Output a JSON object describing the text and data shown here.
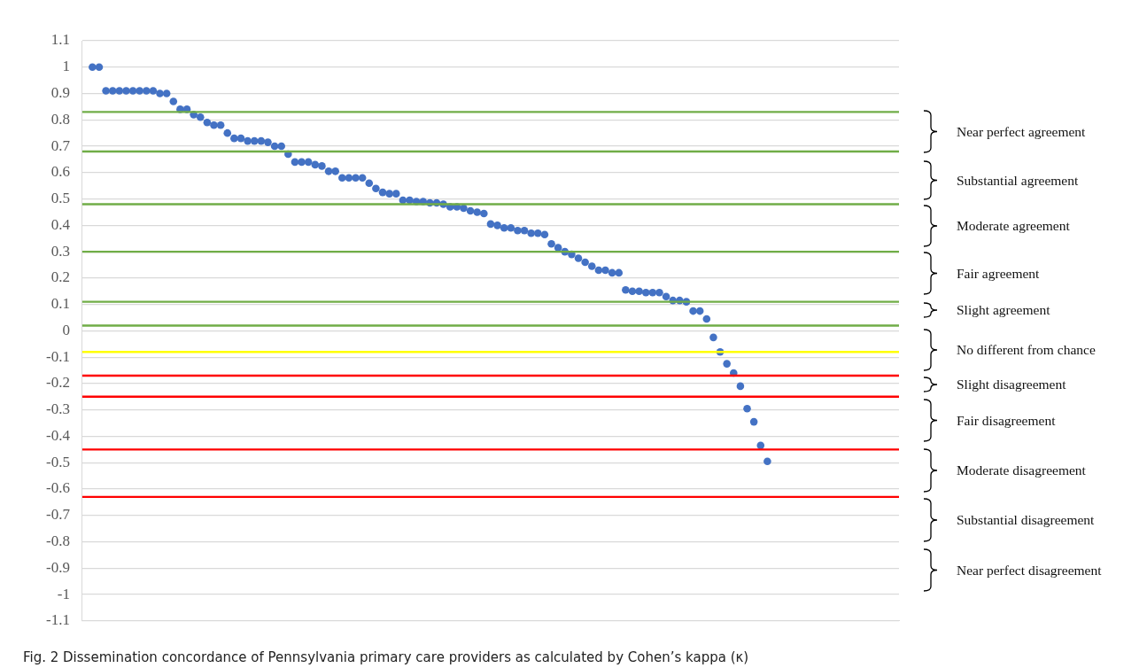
{
  "chart_data": {
    "type": "scatter",
    "categories": [
      null,
      null,
      null,
      null,
      null,
      null,
      null,
      null,
      null,
      null,
      null,
      null,
      null,
      null,
      null,
      null,
      null,
      null,
      null,
      null,
      null,
      null,
      null,
      null,
      null,
      null,
      null,
      null,
      null,
      null,
      null,
      null,
      null,
      null,
      null,
      null,
      null,
      null,
      null,
      null,
      null,
      null,
      null,
      null,
      null,
      null,
      null,
      null,
      null,
      null,
      null,
      null,
      null,
      null,
      null,
      null,
      null,
      null,
      null,
      null,
      null,
      null,
      null,
      null,
      null,
      null,
      null,
      null,
      null,
      null,
      null,
      null,
      null,
      null,
      null,
      null,
      null,
      null,
      null,
      null,
      null,
      null,
      null,
      null,
      null,
      null,
      null,
      null,
      null,
      null,
      null,
      null,
      null,
      null,
      null,
      null,
      null,
      null,
      null,
      null,
      null,
      null,
      null,
      null,
      null,
      null,
      null,
      null,
      null,
      null,
      null,
      null,
      null,
      null,
      null,
      null,
      null,
      null,
      null,
      null,
      null
    ],
    "series": [
      {
        "color": "#4472c4",
        "values": [
          null,
          1,
          1,
          0.91,
          0.91,
          0.91,
          0.91,
          0.91,
          0.91,
          0.91,
          0.91,
          0.9,
          0.9,
          0.87,
          0.84,
          0.84,
          0.82,
          0.81,
          0.79,
          0.78,
          0.78,
          0.75,
          0.73,
          0.73,
          0.72,
          0.72,
          0.72,
          0.715,
          0.7,
          0.7,
          0.67,
          0.64,
          0.64,
          0.64,
          0.63,
          0.625,
          0.605,
          0.605,
          0.58,
          0.58,
          0.58,
          0.58,
          0.56,
          0.54,
          0.525,
          0.52,
          0.52,
          0.495,
          0.495,
          0.49,
          0.49,
          0.485,
          0.485,
          0.48,
          0.47,
          0.47,
          0.465,
          0.455,
          0.45,
          0.445,
          0.405,
          0.4,
          0.39,
          0.39,
          0.38,
          0.38,
          0.37,
          0.37,
          0.365,
          0.33,
          0.315,
          0.3,
          0.29,
          0.275,
          0.26,
          0.245,
          0.23,
          0.23,
          0.22,
          0.22,
          0.155,
          0.15,
          0.15,
          0.145,
          0.145,
          0.145,
          0.13,
          0.115,
          0.115,
          0.11,
          0.075,
          0.075,
          0.045,
          -0.025,
          -0.08,
          -0.125,
          -0.16,
          -0.21,
          -0.295,
          -0.345,
          -0.435,
          -0.495,
          null,
          null,
          null,
          null,
          null,
          null,
          null,
          null,
          null,
          null,
          null,
          null,
          null,
          null,
          null,
          null,
          null,
          null,
          null
        ]
      }
    ],
    "marker": "circle",
    "ylim": [
      -1.1,
      1.1
    ],
    "yticks": [
      -1.1,
      -1,
      -0.9,
      -0.8,
      -0.7,
      -0.6,
      -0.5,
      -0.4,
      -0.3,
      -0.2,
      -0.1,
      0,
      0.1,
      0.2,
      0.3,
      0.4,
      0.5,
      0.6,
      0.7,
      0.8,
      0.9,
      1,
      1.1
    ],
    "grid": "y",
    "legend": false,
    "tick_labels": "y",
    "ref_lines": [
      {
        "axis": "y",
        "value": 0.83,
        "color": "#70ad47"
      },
      {
        "axis": "y",
        "value": 0.68,
        "color": "#70ad47"
      },
      {
        "axis": "y",
        "value": 0.48,
        "color": "#70ad47"
      },
      {
        "axis": "y",
        "value": 0.3,
        "color": "#70ad47"
      },
      {
        "axis": "y",
        "value": 0.11,
        "color": "#70ad47"
      },
      {
        "axis": "y",
        "value": 0.02,
        "color": "#70ad47"
      },
      {
        "axis": "y",
        "value": -0.08,
        "color": "#ffff00"
      },
      {
        "axis": "y",
        "value": -0.17,
        "color": "#ff0000"
      },
      {
        "axis": "y",
        "value": -0.25,
        "color": "#ff0000"
      },
      {
        "axis": "y",
        "value": -0.45,
        "color": "#ff0000"
      },
      {
        "axis": "y",
        "value": -0.63,
        "color": "#ff0000"
      }
    ],
    "annotations": [
      "Near perfect agreement",
      "Substantial agreement",
      "Moderate agreement",
      "Fair agreement",
      "Slight agreement",
      "No different from chance",
      "Slight disagreement",
      "Fair disagreement",
      "Moderate disagreement",
      "Substantial disagreement",
      "Near perfect disagreement",
      "Fig. 2  Dissemination concordance of Pennsylvania primary care providers as calculated by Cohen’s kappa (κ)"
    ]
  }
}
